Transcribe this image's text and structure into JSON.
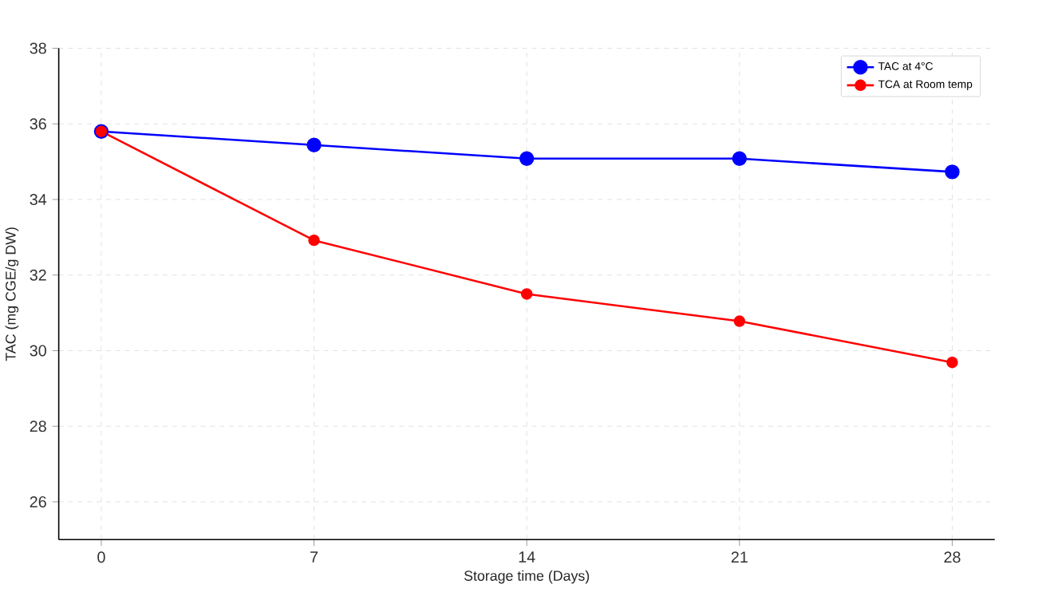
{
  "chart_data": {
    "type": "line",
    "xlabel": "Storage time (Days)",
    "ylabel": "TAC (mg CGE/g DW)",
    "x": [
      0,
      7,
      14,
      21,
      28
    ],
    "series": [
      {
        "name": "TAC at 4°C",
        "color": "#0000ff",
        "values": [
          35.8,
          35.44,
          35.08,
          35.08,
          34.73
        ]
      },
      {
        "name": "TCA at Room temp",
        "color": "#ff0000",
        "values": [
          35.8,
          32.92,
          31.5,
          30.78,
          29.69
        ]
      }
    ],
    "xlim": [
      -1.4,
      29.4
    ],
    "ylim": [
      25,
      38
    ],
    "xticks": [
      0,
      7,
      14,
      21,
      28
    ],
    "yticks": [
      26,
      28,
      30,
      32,
      34,
      36,
      38
    ],
    "grid": true,
    "legend": "top right",
    "marker": "circle",
    "line_style": "solid"
  }
}
